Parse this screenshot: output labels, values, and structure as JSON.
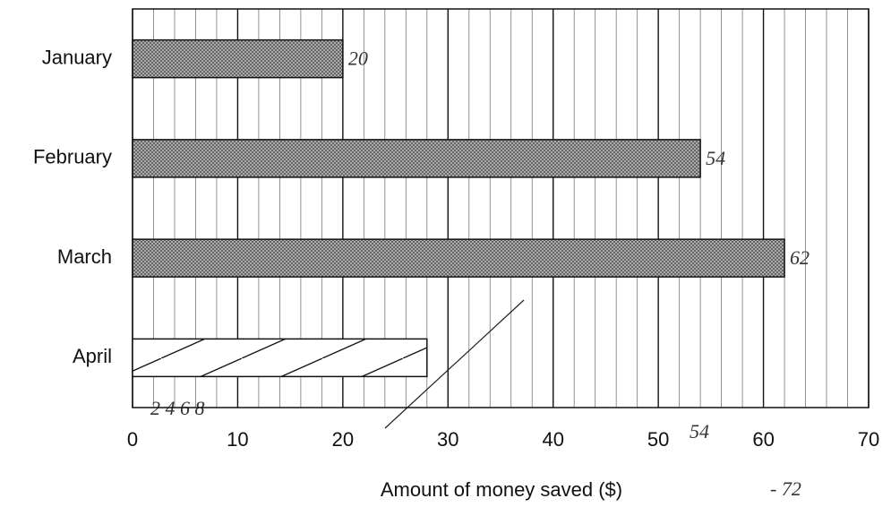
{
  "chart_data": {
    "type": "hbar",
    "categories": [
      "January",
      "February",
      "March",
      "April"
    ],
    "values": [
      20,
      54,
      62,
      28
    ],
    "value_labels": [
      "20",
      "54",
      "62",
      null
    ],
    "patterns": [
      "crosshatch",
      "crosshatch",
      "crosshatch",
      "diagonal"
    ],
    "color": "#8c8c8c",
    "x_label": "Amount of money saved ($)",
    "xlim": [
      0,
      70
    ],
    "xticks": [
      0,
      10,
      20,
      30,
      40,
      50,
      60,
      70
    ],
    "minor_xticks": [
      2,
      4,
      6,
      8,
      12,
      14,
      16,
      18,
      22,
      24,
      26,
      28,
      32,
      34,
      36,
      38,
      42,
      44,
      46,
      48,
      52,
      54,
      56,
      58,
      62,
      64,
      66,
      68
    ],
    "grid": true,
    "annotations": [
      "2 4 6 8",
      "54",
      "- 72"
    ]
  }
}
